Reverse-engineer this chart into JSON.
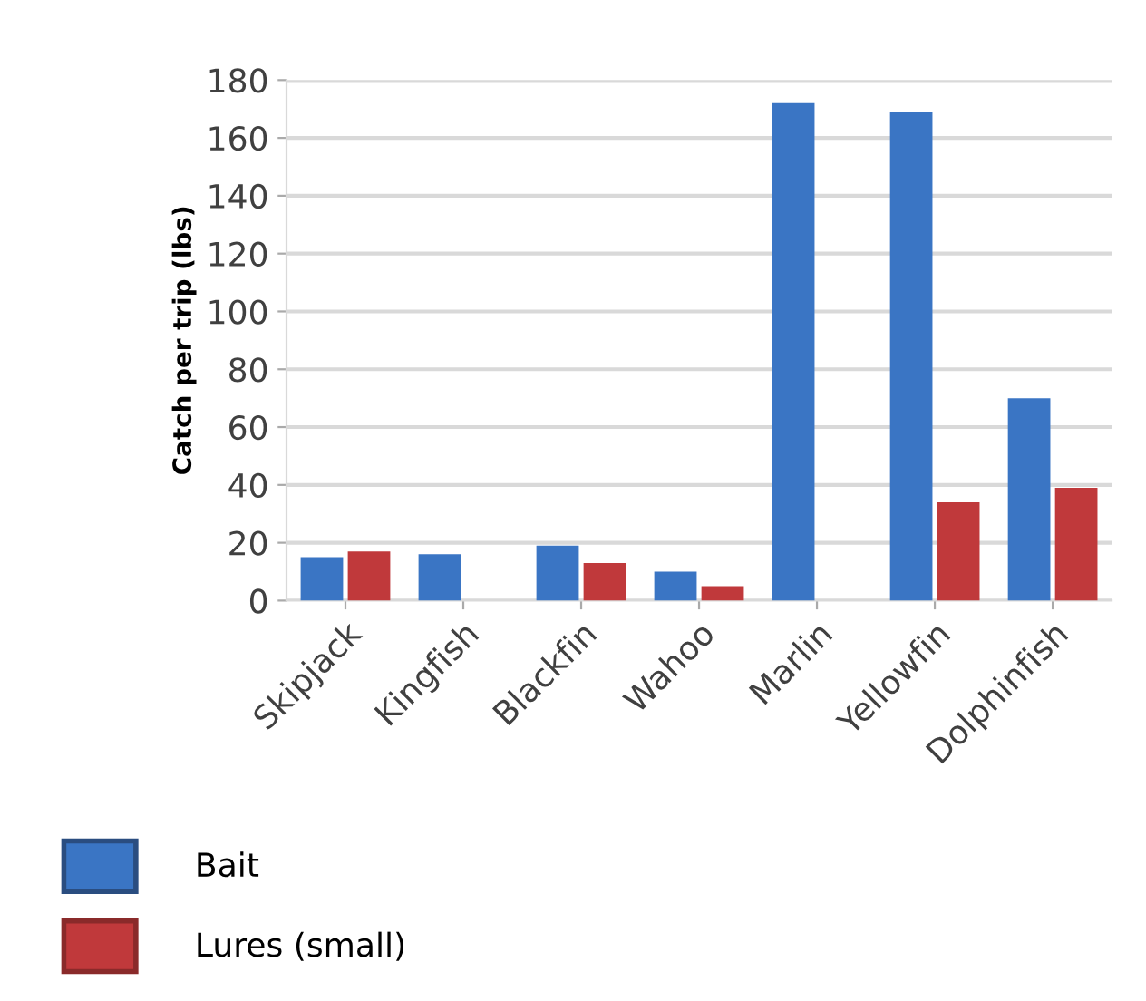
{
  "chart_data": {
    "type": "bar",
    "ylabel": "Catch per trip (lbs)",
    "categories": [
      "Skipjack",
      "Kingfish",
      "Blackfin",
      "Wahoo",
      "Marlin",
      "Yellowfin",
      "Dolphinfish"
    ],
    "series": [
      {
        "name": "Bait",
        "color": "#3a75c4",
        "values": [
          15,
          16,
          19,
          10,
          172,
          169,
          70
        ]
      },
      {
        "name": "Lures (small)",
        "color": "#c0393b",
        "values": [
          17,
          null,
          13,
          5,
          null,
          34,
          39
        ]
      }
    ],
    "ylim": [
      0,
      180
    ],
    "yticks": [
      0,
      20,
      40,
      60,
      80,
      100,
      120,
      140,
      160,
      180
    ],
    "grid": "y",
    "legend": "bottom left"
  }
}
